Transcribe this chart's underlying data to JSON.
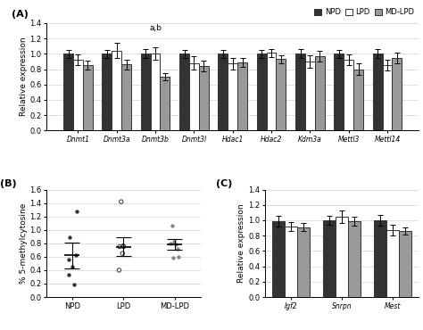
{
  "panel_A": {
    "categories": [
      "Dnmt1",
      "Dnmt3a",
      "Dnmt3b",
      "Dnmt3l",
      "Hdac1",
      "Hdac2",
      "Kdm3a",
      "Mettl3",
      "Mettl14"
    ],
    "NPD_vals": [
      1.0,
      1.0,
      1.0,
      1.0,
      1.0,
      1.0,
      1.0,
      1.0,
      1.0
    ],
    "LPD_vals": [
      0.92,
      1.04,
      1.0,
      0.88,
      0.87,
      1.01,
      0.9,
      0.92,
      0.85
    ],
    "MDLPD_vals": [
      0.85,
      0.86,
      0.7,
      0.84,
      0.89,
      0.93,
      0.97,
      0.8,
      0.95
    ],
    "NPD_err": [
      0.05,
      0.05,
      0.06,
      0.05,
      0.05,
      0.05,
      0.06,
      0.05,
      0.06
    ],
    "LPD_err": [
      0.07,
      0.1,
      0.08,
      0.09,
      0.07,
      0.05,
      0.08,
      0.07,
      0.07
    ],
    "MDLPD_err": [
      0.06,
      0.06,
      0.05,
      0.07,
      0.06,
      0.05,
      0.07,
      0.07,
      0.07
    ],
    "annotation_text": "a,b",
    "annotation_group": 2,
    "ylabel": "Relative expression",
    "ylim": [
      0,
      1.4
    ],
    "yticks": [
      0.0,
      0.2,
      0.4,
      0.6,
      0.8,
      1.0,
      1.2,
      1.4
    ]
  },
  "panel_B": {
    "xlabel_cats": [
      "NPD",
      "LPD",
      "MD-LPD"
    ],
    "NPD_dots": [
      1.28,
      0.89,
      0.62,
      0.56,
      0.45,
      0.33,
      0.19
    ],
    "LPD_dots": [
      1.42,
      0.76,
      0.75,
      0.75,
      0.65,
      0.4
    ],
    "MDLPD_dots": [
      1.06,
      0.82,
      0.8,
      0.78,
      0.72,
      0.6,
      0.58
    ],
    "NPD_mean": 0.62,
    "NPD_sd": 0.19,
    "LPD_mean": 0.75,
    "LPD_sd": 0.14,
    "MDLPD_mean": 0.79,
    "MDLPD_sd": 0.08,
    "ylabel": "% 5-methylcytosine",
    "ylim": [
      0,
      1.6
    ],
    "yticks": [
      0.0,
      0.2,
      0.4,
      0.6,
      0.8,
      1.0,
      1.2,
      1.4,
      1.6
    ]
  },
  "panel_C": {
    "categories": [
      "Igf2",
      "Snrpn",
      "Mest"
    ],
    "NPD_vals": [
      0.99,
      1.0,
      1.0
    ],
    "LPD_vals": [
      0.92,
      1.05,
      0.87
    ],
    "MDLPD_vals": [
      0.91,
      0.99,
      0.86
    ],
    "NPD_err": [
      0.07,
      0.06,
      0.07
    ],
    "LPD_err": [
      0.06,
      0.08,
      0.07
    ],
    "MDLPD_err": [
      0.05,
      0.06,
      0.05
    ],
    "ylabel": "Relative expression",
    "ylim": [
      0,
      1.4
    ],
    "yticks": [
      0.0,
      0.2,
      0.4,
      0.6,
      0.8,
      1.0,
      1.2,
      1.4
    ]
  },
  "colors": {
    "NPD": "#333333",
    "LPD": "#ffffff",
    "MDLPD": "#999999"
  },
  "edgecolor": "#333333",
  "legend_labels": [
    "NPD",
    "LPD",
    "MD-LPD"
  ],
  "bar_width": 0.25
}
